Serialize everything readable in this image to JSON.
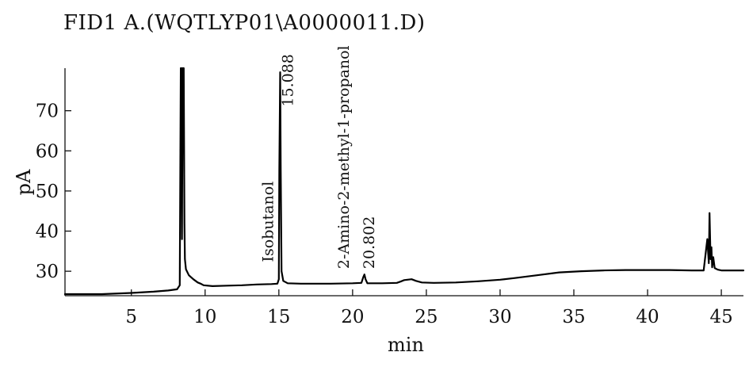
{
  "chart_data": {
    "type": "line",
    "title": "FID1 A.(WQTLYP01\\A0000011.D)",
    "xlabel": "min",
    "ylabel": "pA",
    "xlim": [
      0.5,
      46.5
    ],
    "ylim": [
      23.9,
      80.6
    ],
    "x_ticks": [
      5,
      10,
      15,
      20,
      25,
      30,
      35,
      40,
      45
    ],
    "y_ticks": [
      30,
      40,
      50,
      60,
      70
    ],
    "grid": false,
    "series": [
      {
        "x": [
          0.5,
          3.0,
          5.0,
          6.5,
          7.5,
          8.1,
          8.28,
          8.35,
          8.4,
          8.43,
          8.48,
          8.55,
          8.6,
          8.63,
          8.7,
          8.9,
          9.2,
          9.5,
          9.7,
          9.9,
          10.5,
          11.5,
          12.5,
          13.5,
          14.5,
          14.9,
          15.0,
          15.03,
          15.088,
          15.13,
          15.18,
          15.3,
          15.6,
          16.5,
          18.5,
          20.0,
          20.6,
          20.72,
          20.802,
          20.88,
          21.0,
          22.0,
          23.0,
          23.3,
          23.5,
          24.0,
          24.3,
          24.7,
          25.5,
          27.0,
          28.5,
          30.0,
          31.0,
          32.5,
          34.0,
          35.5,
          37.0,
          38.5,
          40.0,
          41.5,
          43.0,
          43.8,
          44.05,
          44.15,
          44.2,
          44.27,
          44.33,
          44.38,
          44.45,
          44.55,
          44.65,
          44.75,
          45.0,
          46.5
        ],
        "y": [
          24.3,
          24.3,
          24.6,
          24.9,
          25.2,
          25.5,
          26.5,
          80.6,
          80.6,
          38.0,
          80.6,
          80.6,
          42.0,
          33.0,
          30.5,
          29.0,
          28.0,
          27.2,
          26.9,
          26.5,
          26.3,
          26.4,
          26.5,
          26.7,
          26.8,
          26.9,
          28.0,
          55.0,
          79.6,
          55.0,
          30.0,
          27.6,
          27.0,
          26.9,
          26.9,
          27.0,
          27.1,
          28.5,
          29.2,
          28.0,
          27.0,
          27.0,
          27.1,
          27.5,
          27.8,
          28.0,
          27.6,
          27.2,
          27.1,
          27.2,
          27.5,
          27.9,
          28.3,
          29.0,
          29.7,
          30.0,
          30.2,
          30.3,
          30.3,
          30.3,
          30.2,
          30.2,
          38.0,
          32.0,
          44.5,
          33.0,
          36.0,
          31.0,
          33.5,
          30.8,
          30.6,
          30.4,
          30.2,
          30.2
        ]
      }
    ],
    "annotations": [
      {
        "text": "Isobutanol",
        "x": 14.6,
        "y": 32.3
      },
      {
        "text": "15.088",
        "x": 15.95,
        "y": 71.0
      },
      {
        "text": "2-Amino-2-methyl-1-propanol",
        "x": 19.75,
        "y": 30.6
      },
      {
        "text": "20.802",
        "x": 21.45,
        "y": 30.6
      }
    ]
  }
}
